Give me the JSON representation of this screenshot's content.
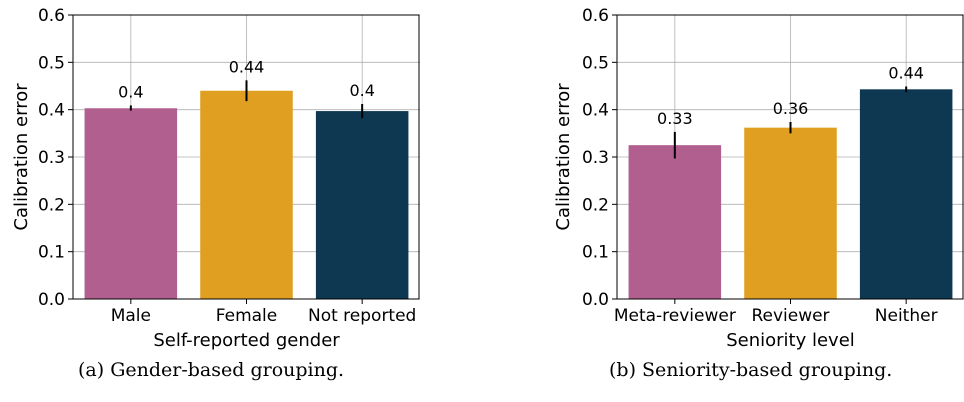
{
  "chart_data": [
    {
      "type": "bar",
      "xlabel": "Self-reported gender",
      "ylabel": "Calibration error",
      "ylim": [
        0.0,
        0.6
      ],
      "yticks": [
        "0.0",
        "0.1",
        "0.2",
        "0.3",
        "0.4",
        "0.5",
        "0.6"
      ],
      "grid": true,
      "categories": [
        "Male",
        "Female",
        "Not reported"
      ],
      "values": [
        0.403,
        0.44,
        0.397
      ],
      "labels": [
        "0.4",
        "0.44",
        "0.4"
      ],
      "error_low": [
        0.398,
        0.418,
        0.382
      ],
      "error_high": [
        0.409,
        0.462,
        0.412
      ],
      "colors": [
        "#b05f8e",
        "#e19f22",
        "#0e3851"
      ],
      "caption": "(a) Gender-based grouping."
    },
    {
      "type": "bar",
      "xlabel": "Seniority level",
      "ylabel": "Calibration error",
      "ylim": [
        0.0,
        0.6
      ],
      "yticks": [
        "0.0",
        "0.1",
        "0.2",
        "0.3",
        "0.4",
        "0.5",
        "0.6"
      ],
      "grid": true,
      "categories": [
        "Meta-reviewer",
        "Reviewer",
        "Neither"
      ],
      "values": [
        0.325,
        0.362,
        0.443
      ],
      "labels": [
        "0.33",
        "0.36",
        "0.44"
      ],
      "error_low": [
        0.297,
        0.35,
        0.437
      ],
      "error_high": [
        0.353,
        0.374,
        0.449
      ],
      "colors": [
        "#b05f8e",
        "#e19f22",
        "#0e3851"
      ],
      "caption": "(b) Seniority-based grouping."
    }
  ]
}
